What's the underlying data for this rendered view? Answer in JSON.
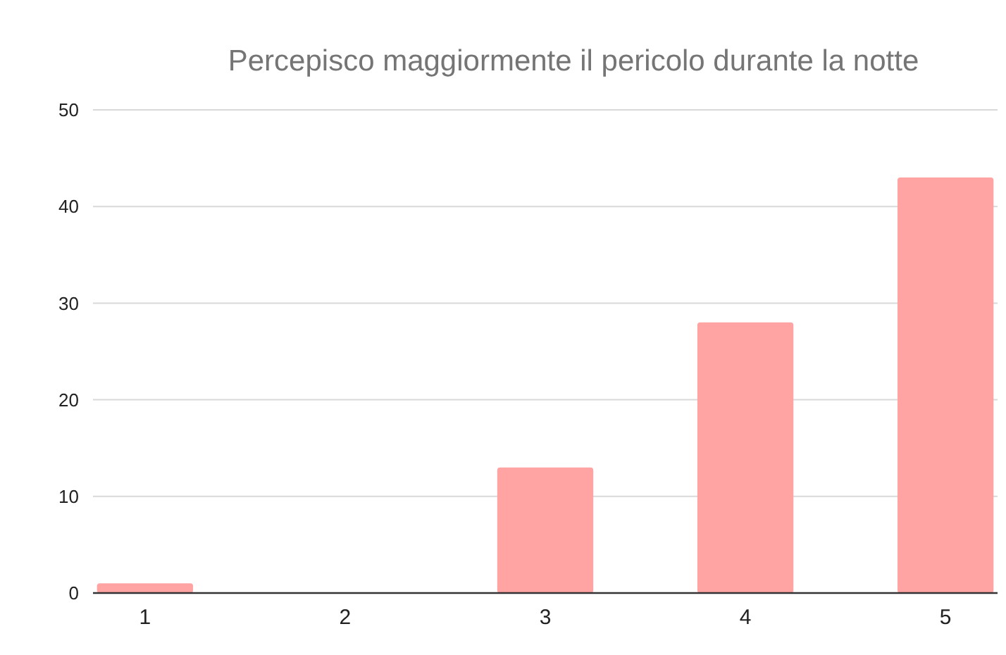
{
  "chart_data": {
    "type": "bar",
    "title": "Percepisco maggiormente il pericolo durante la notte",
    "categories": [
      "1",
      "2",
      "3",
      "4",
      "5"
    ],
    "values": [
      1,
      0,
      13,
      28,
      43
    ],
    "color": "#ffa3a3",
    "ylim": [
      0,
      50
    ],
    "yticks": [
      0,
      10,
      20,
      30,
      40,
      50
    ],
    "grid": "y"
  }
}
